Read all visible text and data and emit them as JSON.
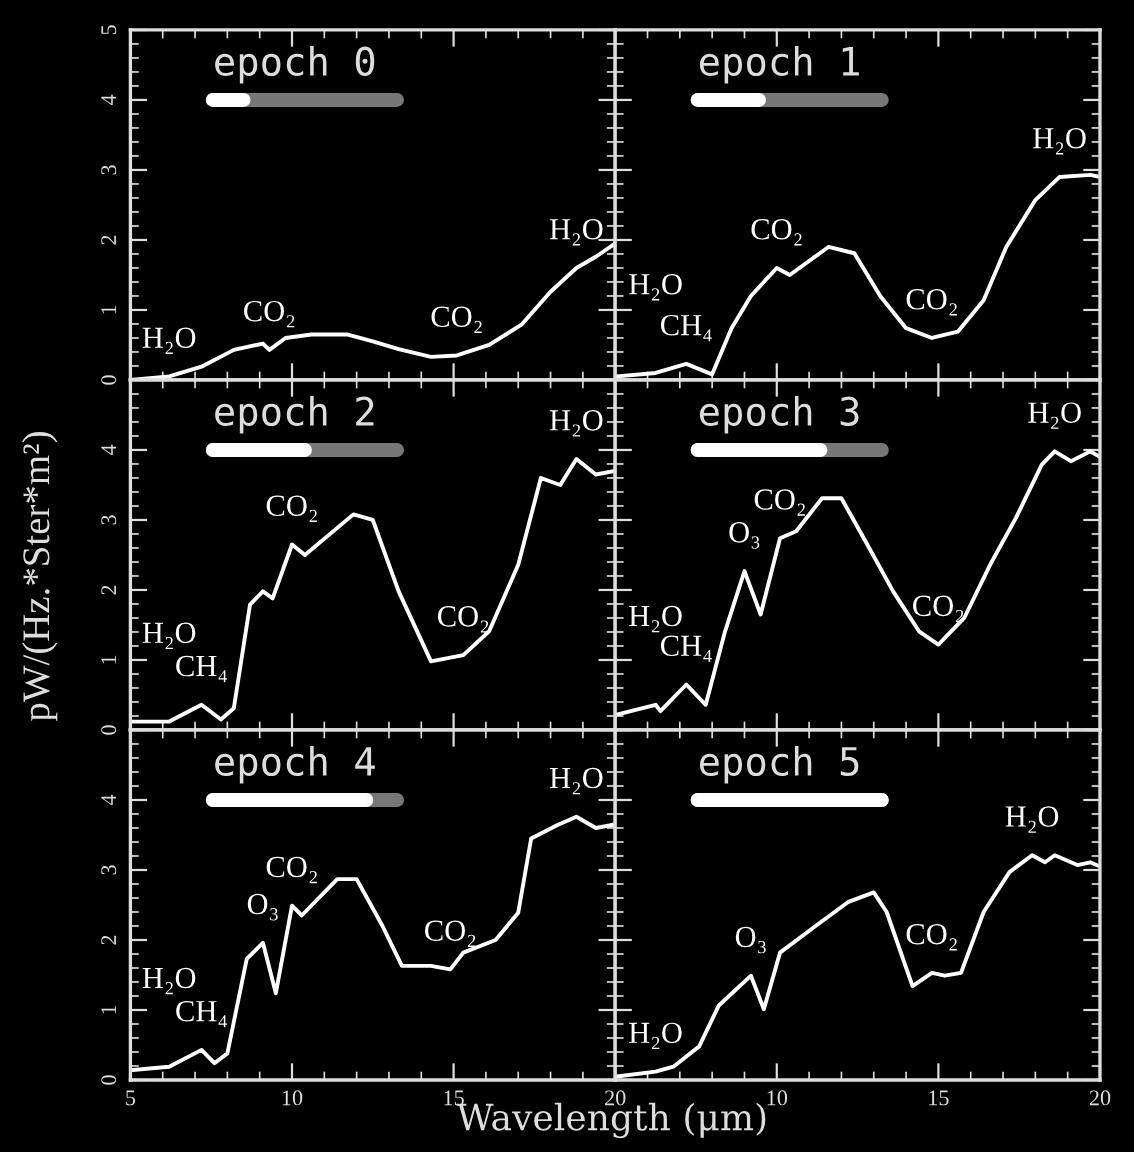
{
  "chart_data": [
    {
      "type": "line",
      "title": "epoch 0",
      "x": [
        5.0,
        6.2,
        7.2,
        8.2,
        9.1,
        9.3,
        9.8,
        10.6,
        11.7,
        12.5,
        13.3,
        14.3,
        15.1,
        16.1,
        17.1,
        18.0,
        18.8,
        19.4,
        20.0
      ],
      "series": [
        {
          "color": "#ffffff",
          "values": [
            0.0,
            0.05,
            0.19,
            0.43,
            0.52,
            0.43,
            0.6,
            0.65,
            0.65,
            0.55,
            0.44,
            0.33,
            0.35,
            0.5,
            0.79,
            1.26,
            1.6,
            1.76,
            1.95
          ]
        }
      ],
      "xlim": [
        5,
        20
      ],
      "ylim": [
        0,
        5
      ],
      "xticks": [
        5,
        10,
        15,
        20
      ],
      "yticks": [
        0,
        1,
        2,
        3,
        4,
        5
      ],
      "tick_labels": "y",
      "annotations": [
        {
          "text": "H₂O",
          "x": 6.2,
          "y": 0.05
        },
        {
          "text": "CO₂",
          "x": 9.3,
          "y": 0.43
        },
        {
          "text": "CO₂",
          "x": 15.1,
          "y": 0.35
        },
        {
          "text": "H₂O",
          "x": 18.8,
          "y": 1.6
        }
      ]
    },
    {
      "type": "line",
      "title": "epoch 1",
      "x": [
        5.05,
        6.25,
        7.2,
        8.0,
        8.6,
        9.2,
        10.0,
        10.4,
        11.6,
        12.4,
        13.2,
        14.0,
        14.8,
        15.6,
        16.4,
        17.1,
        18.0,
        18.75,
        19.7,
        20.0
      ],
      "series": [
        {
          "color": "#ffffff",
          "values": [
            0.05,
            0.1,
            0.23,
            0.08,
            0.74,
            1.2,
            1.6,
            1.5,
            1.9,
            1.81,
            1.2,
            0.74,
            0.6,
            0.69,
            1.14,
            1.9,
            2.57,
            2.9,
            2.93,
            2.9
          ]
        }
      ],
      "xlim": [
        5,
        20
      ],
      "ylim": [
        0,
        5
      ],
      "xticks": [
        5,
        10,
        15,
        20
      ],
      "yticks": [
        0,
        1,
        2,
        3,
        4,
        5
      ],
      "tick_labels": false,
      "annotations": [
        {
          "text": "CH₄",
          "x": 7.2,
          "y": 0.23
        },
        {
          "text": "H₂O",
          "x": 6.25,
          "y": 0.1
        },
        {
          "text": "CO₂",
          "x": 10.0,
          "y": 1.6
        },
        {
          "text": "CO₂",
          "x": 14.8,
          "y": 0.6
        },
        {
          "text": "H₂O",
          "x": 18.75,
          "y": 2.9
        }
      ]
    },
    {
      "type": "line",
      "title": "epoch 2",
      "ylabel": "pW/(Hz.*Ster*m²)",
      "x": [
        5.0,
        6.2,
        7.2,
        7.8,
        8.2,
        8.7,
        9.1,
        9.4,
        10.0,
        10.4,
        11.9,
        12.5,
        13.3,
        14.3,
        15.3,
        16.1,
        17.0,
        17.7,
        18.3,
        18.8,
        19.4,
        20.0
      ],
      "series": [
        {
          "color": "#ffffff",
          "values": [
            0.12,
            0.12,
            0.36,
            0.15,
            0.31,
            1.79,
            1.98,
            1.88,
            2.65,
            2.5,
            3.08,
            3.0,
            1.98,
            0.98,
            1.07,
            1.41,
            2.36,
            3.6,
            3.5,
            3.87,
            3.65,
            3.7
          ]
        }
      ],
      "xlim": [
        5,
        20
      ],
      "ylim": [
        0,
        5
      ],
      "xticks": [
        5,
        10,
        15,
        20
      ],
      "yticks": [
        0,
        1,
        2,
        3,
        4,
        {
          "value": 5,
          "label": null
        }
      ],
      "tick_labels": "y",
      "annotations": [
        {
          "text": "CH₄",
          "x": 7.2,
          "y": 0.36
        },
        {
          "text": "H₂O",
          "x": 6.2,
          "y": 0.12
        },
        {
          "text": "CO₂",
          "x": 10.0,
          "y": 2.65
        },
        {
          "text": "CO₂",
          "x": 15.3,
          "y": 1.07
        },
        {
          "text": "H₂O",
          "x": 18.8,
          "y": 3.87
        }
      ]
    },
    {
      "type": "line",
      "title": "epoch 3",
      "x": [
        5.05,
        6.25,
        6.4,
        7.2,
        7.8,
        8.4,
        9.0,
        9.5,
        10.1,
        10.6,
        11.4,
        12.0,
        12.8,
        13.6,
        14.4,
        15.0,
        15.8,
        16.6,
        17.4,
        18.2,
        18.6,
        19.1,
        19.7,
        20.0
      ],
      "series": [
        {
          "color": "#ffffff",
          "values": [
            0.22,
            0.36,
            0.27,
            0.65,
            0.36,
            1.41,
            2.27,
            1.65,
            2.74,
            2.84,
            3.31,
            3.31,
            2.65,
            1.98,
            1.41,
            1.22,
            1.6,
            2.36,
            3.03,
            3.79,
            3.98,
            3.84,
            3.98,
            3.9
          ]
        }
      ],
      "xlim": [
        5,
        20
      ],
      "ylim": [
        0,
        5
      ],
      "xticks": [
        5,
        10,
        15,
        20
      ],
      "yticks": [
        0,
        1,
        2,
        3,
        4,
        5
      ],
      "tick_labels": false,
      "annotations": [
        {
          "text": "CH₄",
          "x": 7.2,
          "y": 0.65
        },
        {
          "text": "H₂O",
          "x": 6.25,
          "y": 0.36
        },
        {
          "text": "O₃",
          "x": 9.0,
          "y": 2.27
        },
        {
          "text": "CO₂",
          "x": 10.1,
          "y": 2.74
        },
        {
          "text": "CO₂",
          "x": 15.0,
          "y": 1.22
        },
        {
          "text": "H₂O",
          "x": 18.6,
          "y": 3.98
        }
      ]
    },
    {
      "type": "line",
      "title": "epoch 4",
      "x": [
        5.0,
        6.2,
        7.2,
        7.6,
        8.0,
        8.6,
        9.1,
        9.5,
        10.0,
        10.3,
        11.4,
        12.0,
        12.8,
        13.4,
        14.3,
        14.9,
        15.3,
        16.3,
        17.0,
        17.4,
        18.2,
        18.8,
        19.4,
        20.0
      ],
      "series": [
        {
          "color": "#ffffff",
          "values": [
            0.14,
            0.19,
            0.43,
            0.24,
            0.38,
            1.73,
            1.96,
            1.24,
            2.49,
            2.35,
            2.87,
            2.87,
            2.2,
            1.63,
            1.63,
            1.58,
            1.82,
            2.0,
            2.39,
            3.45,
            3.64,
            3.76,
            3.6,
            3.65
          ]
        }
      ],
      "xlim": [
        5,
        20
      ],
      "ylim": [
        0,
        5
      ],
      "xticks": [
        5,
        10,
        15,
        {
          "value": 20,
          "label": "20"
        }
      ],
      "yticks": [
        0,
        1,
        2,
        3,
        4,
        {
          "value": 5,
          "label": null
        }
      ],
      "xlabel": "Wavelength (μm)",
      "annotations": [
        {
          "text": "CH₄",
          "x": 7.2,
          "y": 0.43
        },
        {
          "text": "H₂O",
          "x": 6.2,
          "y": 0.19
        },
        {
          "text": "O₃",
          "x": 9.1,
          "y": 1.96
        },
        {
          "text": "CO₂",
          "x": 10.0,
          "y": 2.49
        },
        {
          "text": "CO₂",
          "x": 14.9,
          "y": 1.58
        },
        {
          "text": "H₂O",
          "x": 18.8,
          "y": 3.76
        }
      ]
    },
    {
      "type": "line",
      "title": "epoch 5",
      "x": [
        5.05,
        6.25,
        6.8,
        7.6,
        8.2,
        9.2,
        9.6,
        10.1,
        11.2,
        12.2,
        13.0,
        13.4,
        14.2,
        14.8,
        15.2,
        15.7,
        16.4,
        17.2,
        17.9,
        18.3,
        18.6,
        19.3,
        19.7,
        20.0
      ],
      "series": [
        {
          "color": "#ffffff",
          "values": [
            0.05,
            0.12,
            0.19,
            0.48,
            1.06,
            1.49,
            1.01,
            1.82,
            2.2,
            2.54,
            2.68,
            2.4,
            1.34,
            1.53,
            1.49,
            1.53,
            2.4,
            2.97,
            3.21,
            3.11,
            3.21,
            3.07,
            3.11,
            3.05
          ]
        }
      ],
      "xlim": [
        5,
        20
      ],
      "ylim": [
        0,
        5
      ],
      "xticks": [
        {
          "value": 5,
          "label": null
        },
        10,
        15,
        20
      ],
      "yticks": [
        0,
        1,
        2,
        3,
        4,
        5
      ],
      "tick_labels": "x",
      "annotations": [
        {
          "text": "H₂O",
          "x": 6.25,
          "y": 0.12
        },
        {
          "text": "O₃",
          "x": 9.2,
          "y": 1.49
        },
        {
          "text": "CO₂",
          "x": 14.8,
          "y": 1.53
        },
        {
          "text": "H₂O",
          "x": 17.9,
          "y": 3.21
        }
      ]
    }
  ]
}
